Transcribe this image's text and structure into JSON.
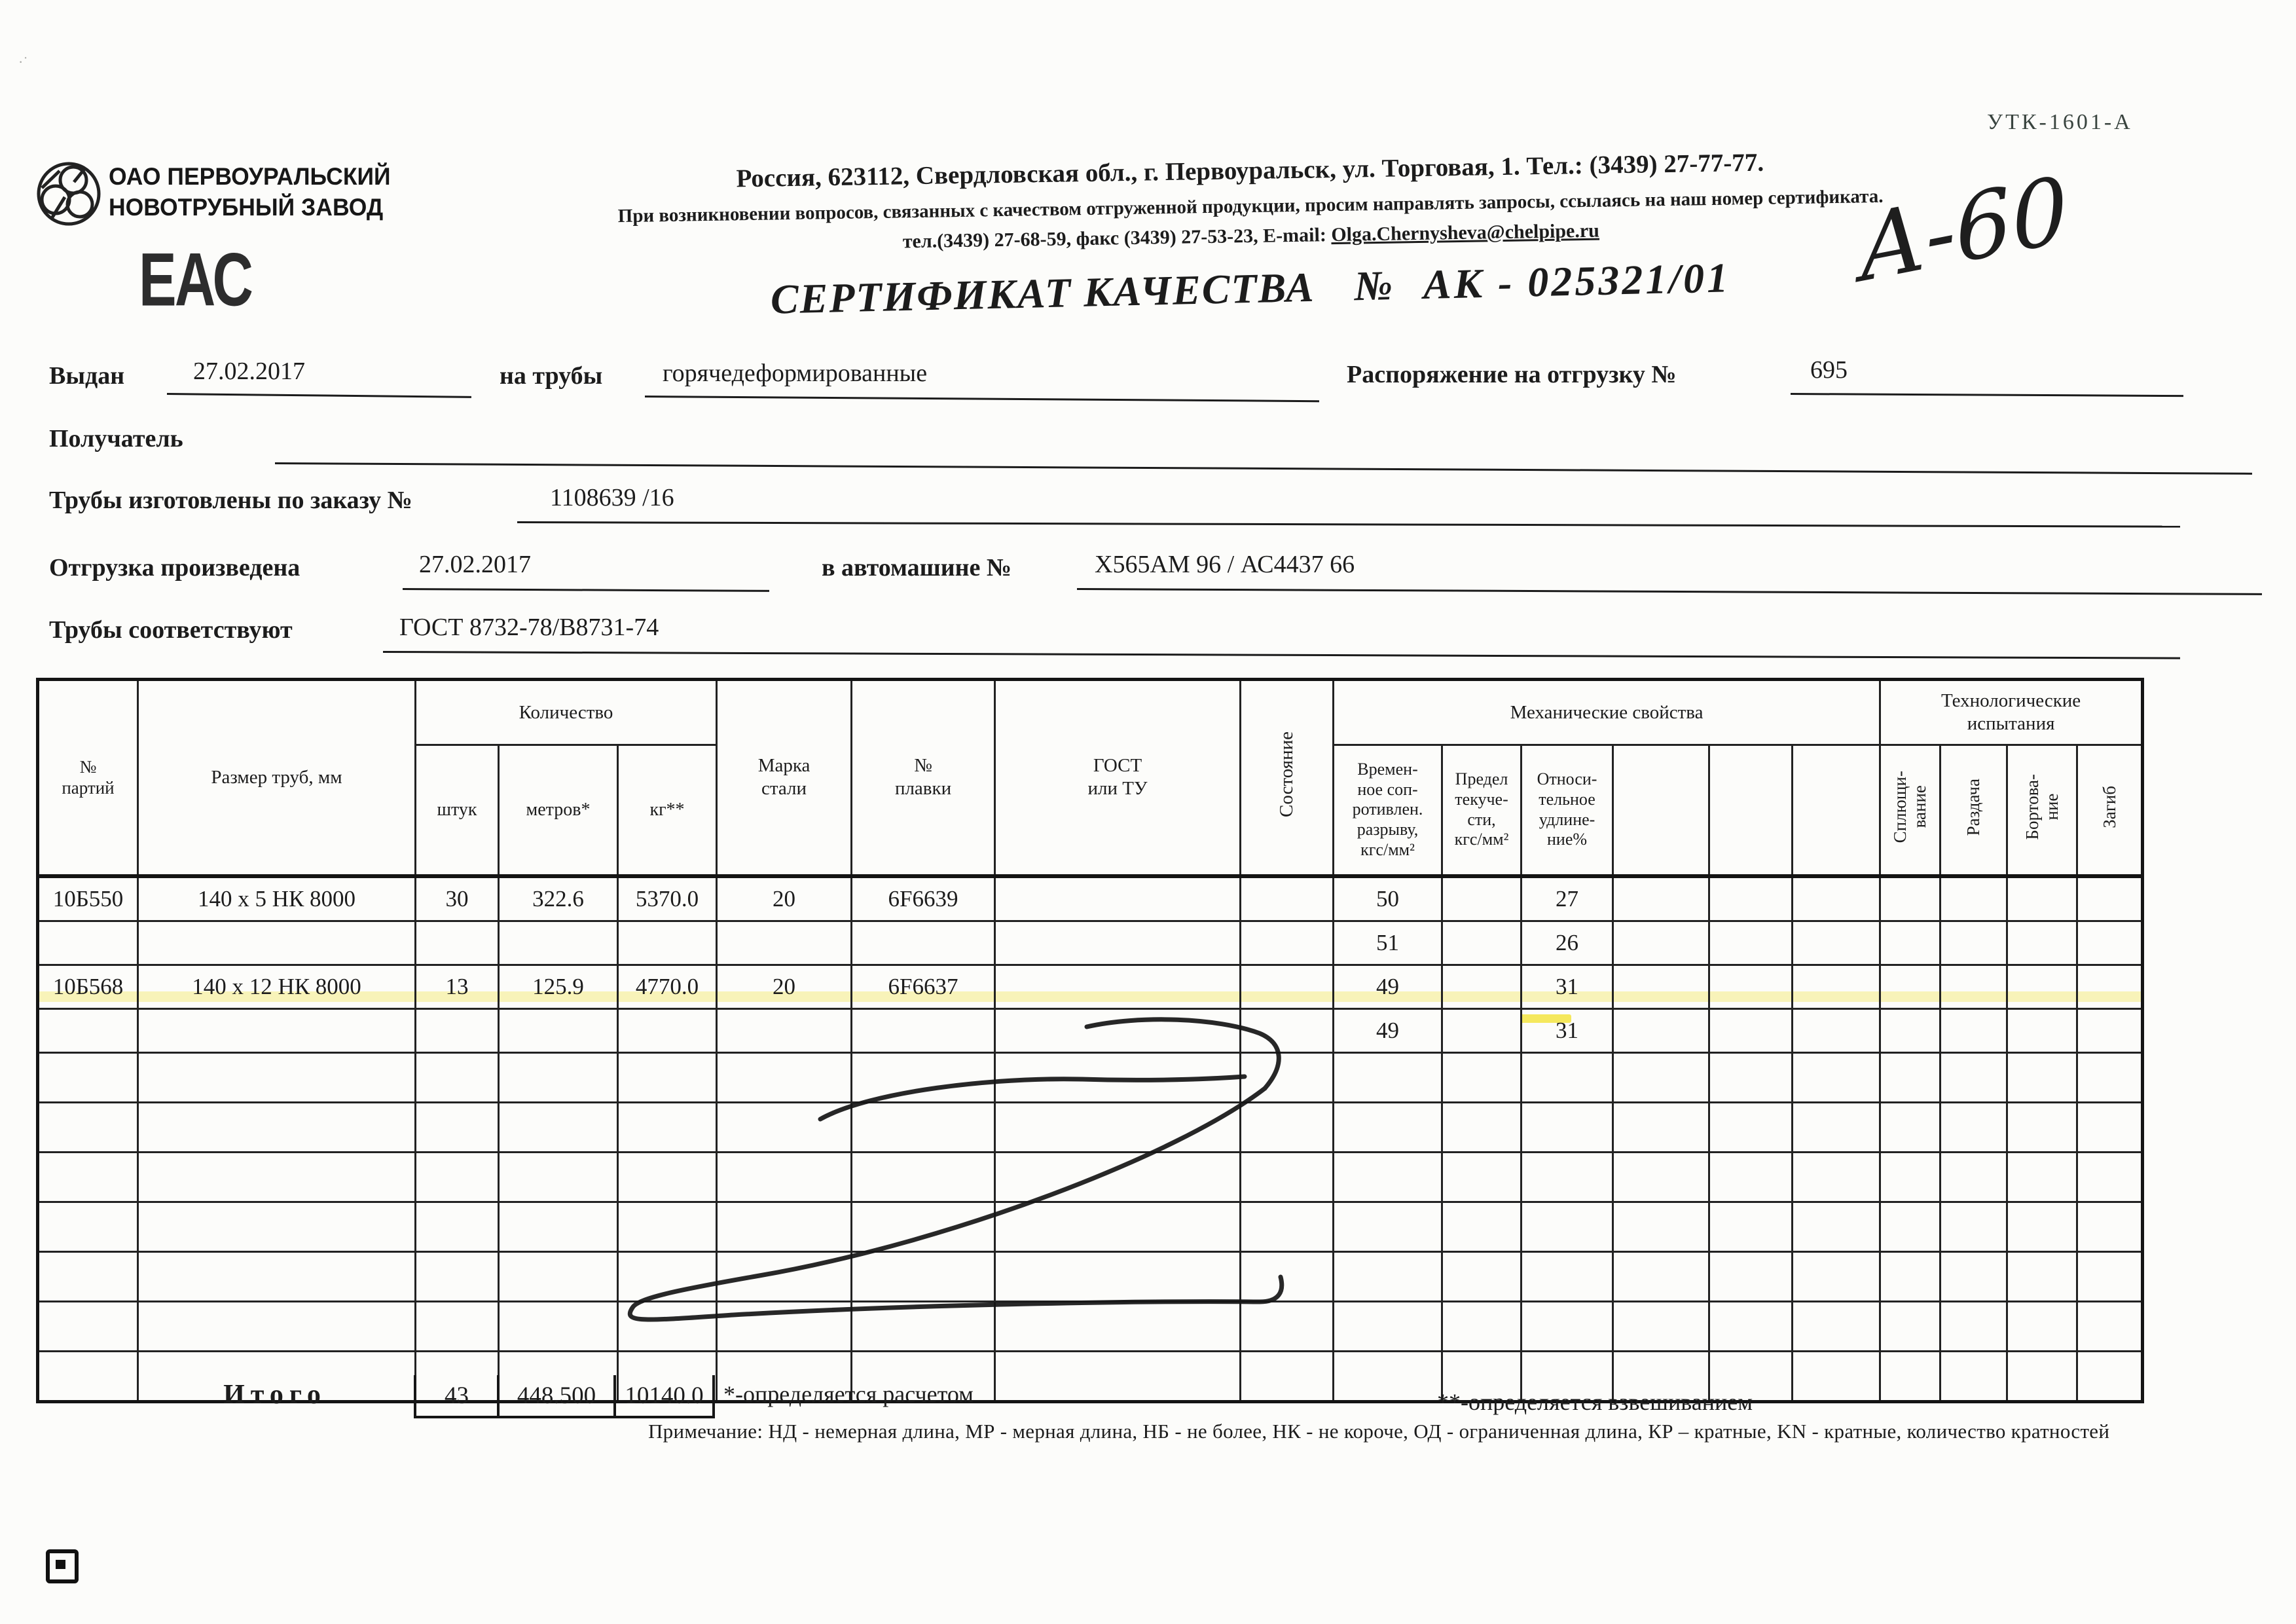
{
  "colors": {
    "paper": "#fcfcfa",
    "ink": "#1c1c1c",
    "highlighter": "#f5e96a"
  },
  "corner": {
    "form_code": "УТК-1601-А",
    "handwritten_mark": "А-60"
  },
  "company": {
    "logo_icon": "pipe-cross-sections-logo",
    "name": "ОАО ПЕРВОУРАЛЬСКИЙ\nНОВОТРУБНЫЙ ЗАВОД",
    "eac_mark": "ЕАС",
    "address": "Россия, 623112, Свердловская обл., г. Первоуральск, ул. Торговая, 1. Тел.: (3439) 27-77-77.",
    "quality_note": "При возникновении вопросов, связанных с качеством отгруженной продукции, просим направлять запросы, ссылаясь на наш номер сертификата.",
    "contact_line": "тел.(3439) 27-68-59, факс (3439) 27-53-23,  E-mail: ",
    "email": "Olga.Chernysheva@chelpipe.ru"
  },
  "title": {
    "label": "СЕРТИФИКАТ КАЧЕСТВА",
    "number_sign": "№",
    "number": "АК - 025321/01"
  },
  "fields": {
    "issued_label": "Выдан",
    "issued_date": "27.02.2017",
    "pipes_label": "на трубы",
    "pipes_type": "горячедеформированные",
    "order_ship_label": "Распоряжение на отгрузку №",
    "order_ship_number": "695",
    "receiver_label": "Получатель",
    "made_to_order_label": "Трубы изготовлены по заказу №",
    "made_to_order_number": "1108639  /16",
    "shipped_label": "Отгрузка произведена",
    "shipped_date": "27.02.2017",
    "truck_label": "в автомашине №",
    "truck_number": "Х565АМ 96 / АС4437 66",
    "conform_label": "Трубы соответствуют",
    "conform_standard": "ГОСТ 8732-78/В8731-74"
  },
  "table": {
    "column_count": 19,
    "empty_row_count": 7,
    "headers": {
      "batch": "№\nпартий",
      "size": "Размер труб, мм",
      "qty_group": "Количество",
      "qty_pcs": "штук",
      "qty_m": "метров*",
      "qty_kg": "кг**",
      "steel": "Марка\nстали",
      "heat": "№\nплавки",
      "gost": "ГОСТ\nили ТУ",
      "state": "Состояние",
      "mech_group": "Механические свойства",
      "mech_tensile": "Времен-\nное соп-\nротивлен.\nразрыву,\nкгс/мм²",
      "mech_yield": "Предел\nтекуче-\nсти,\nкгс/мм²",
      "mech_elong": "Относи-\nтельное\nудлине-\nние%",
      "tech_group": "Технологические\nиспытания",
      "tech_flatten": "Сплющи-\nвание",
      "tech_expand": "Раздача",
      "tech_flange": "Бортова-\nние",
      "tech_bend": "Загиб"
    },
    "rows": [
      {
        "batch": "10Б550",
        "size": "140 х 5 НК 8000",
        "pcs": "30",
        "meters": "322.6",
        "kg": "5370.0",
        "steel": "20",
        "heat": "6F6639",
        "gost": "",
        "state": "",
        "tensile": "50",
        "yield": "",
        "elongation": "27"
      },
      {
        "batch": "",
        "size": "",
        "pcs": "",
        "meters": "",
        "kg": "",
        "steel": "",
        "heat": "",
        "gost": "",
        "state": "",
        "tensile": "51",
        "yield": "",
        "elongation": "26"
      },
      {
        "batch": "10Б568",
        "size": "140 х 12 НК 8000",
        "pcs": "13",
        "meters": "125.9",
        "kg": "4770.0",
        "steel": "20",
        "heat": "6F6637",
        "gost": "",
        "state": "",
        "tensile": "49",
        "yield": "",
        "elongation": "31"
      },
      {
        "batch": "",
        "size": "",
        "pcs": "",
        "meters": "",
        "kg": "",
        "steel": "",
        "heat": "",
        "gost": "",
        "state": "",
        "tensile": "49",
        "yield": "",
        "elongation": "31"
      }
    ],
    "total": {
      "label": "Итого",
      "pcs": "43",
      "meters": "448.500",
      "kg": "10140.0"
    }
  },
  "footnotes": {
    "calc": "*-определяется расчетом",
    "weigh": "**-определяется взвешиванием",
    "note": "Примечание: НД - немерная длина, МР - мерная длина, НБ - не более, НК - не короче, ОД - ограниченная длина, КР – кратные, KN - кратные, количество кратностей"
  }
}
